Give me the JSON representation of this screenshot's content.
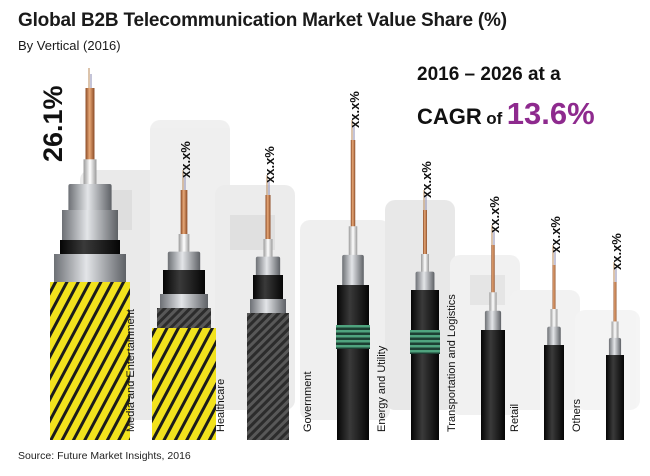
{
  "title": "Global B2B Telecommunication Market Value Share (%)",
  "subtitle": "By Vertical (2016)",
  "cagr": {
    "line1": "2016 – 2026 at a",
    "prefix": "CAGR",
    "of": "of",
    "value": "13.6%",
    "value_color": "#8e2a8e"
  },
  "source": "Source: Future Market Insights, 2016",
  "colors": {
    "copper": "#c8794a",
    "jacket_black": "#151515",
    "armor_yellow": "#f2e21d",
    "steel": "#b9bcc0",
    "green_band": "#3d8a6a",
    "background_devices": "#e7e7e7"
  },
  "chart_data": {
    "type": "bar",
    "categories": [
      "BFSI",
      "Media and Entertainment",
      "Healthcare",
      "Government",
      "Energy and Utility",
      "Transportation and Logistics",
      "Retail",
      "Others"
    ],
    "value_labels": [
      "26.1%",
      "xx.x%",
      "xx.x%",
      "xx.x%",
      "xx.x%",
      "xx.x%",
      "xx.x%",
      "xx.x%"
    ],
    "values": [
      26.1,
      null,
      null,
      null,
      null,
      null,
      null,
      null
    ],
    "ylabel": "",
    "xlabel": "",
    "legend": "none",
    "grid": false
  }
}
